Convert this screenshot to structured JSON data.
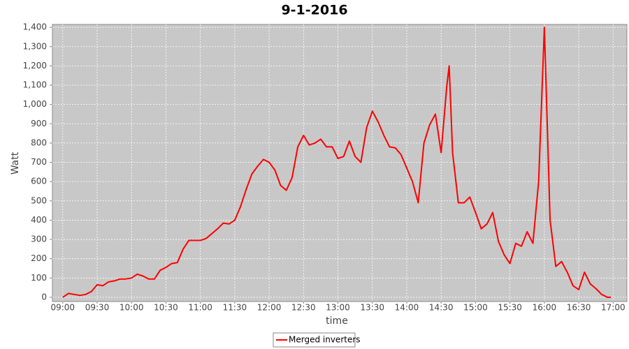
{
  "chart_data": {
    "type": "line",
    "title": "9-1-2016",
    "x_label": "time",
    "y_label": "Watt",
    "x": [
      "09:00",
      "09:05",
      "09:10",
      "09:15",
      "09:20",
      "09:25",
      "09:30",
      "09:35",
      "09:40",
      "09:45",
      "09:50",
      "09:55",
      "10:00",
      "10:05",
      "10:10",
      "10:15",
      "10:20",
      "10:25",
      "10:30",
      "10:35",
      "10:40",
      "10:45",
      "10:50",
      "10:55",
      "11:00",
      "11:05",
      "11:10",
      "11:15",
      "11:20",
      "11:25",
      "11:30",
      "11:35",
      "11:40",
      "11:45",
      "11:50",
      "11:55",
      "12:00",
      "12:05",
      "12:10",
      "12:15",
      "12:20",
      "12:25",
      "12:30",
      "12:35",
      "12:40",
      "12:45",
      "12:50",
      "12:55",
      "13:00",
      "13:05",
      "13:10",
      "13:15",
      "13:20",
      "13:25",
      "13:30",
      "13:35",
      "13:40",
      "13:45",
      "13:50",
      "13:55",
      "14:00",
      "14:05",
      "14:10",
      "14:15",
      "14:20",
      "14:25",
      "14:30",
      "14:35",
      "14:37",
      "14:40",
      "14:45",
      "14:50",
      "14:55",
      "15:00",
      "15:05",
      "15:10",
      "15:15",
      "15:20",
      "15:25",
      "15:30",
      "15:35",
      "15:40",
      "15:45",
      "15:50",
      "15:55",
      "16:00",
      "16:05",
      "16:10",
      "16:15",
      "16:20",
      "16:25",
      "16:30",
      "16:35",
      "16:40",
      "16:45",
      "16:50",
      "16:55",
      "16:58"
    ],
    "series": [
      {
        "name": "Merged inverters",
        "color": "#ff0000",
        "values": [
          0,
          20,
          15,
          10,
          15,
          30,
          65,
          60,
          80,
          85,
          95,
          95,
          100,
          120,
          110,
          95,
          95,
          140,
          155,
          175,
          180,
          250,
          295,
          295,
          295,
          305,
          330,
          355,
          385,
          380,
          400,
          470,
          560,
          640,
          680,
          715,
          700,
          660,
          580,
          555,
          620,
          780,
          840,
          790,
          800,
          820,
          780,
          780,
          720,
          730,
          810,
          730,
          700,
          880,
          965,
          910,
          840,
          780,
          775,
          740,
          670,
          600,
          490,
          800,
          895,
          950,
          750,
          1100,
          1200,
          750,
          490,
          490,
          520,
          440,
          355,
          380,
          440,
          290,
          220,
          175,
          280,
          265,
          340,
          280,
          600,
          1400,
          400,
          160,
          185,
          130,
          60,
          40,
          130,
          70,
          45,
          15,
          0,
          0
        ]
      }
    ],
    "xlim": [
      "08:51",
      "17:12"
    ],
    "xticks": [
      "09:00",
      "09:30",
      "10:00",
      "10:30",
      "11:00",
      "11:30",
      "12:00",
      "12:30",
      "13:00",
      "13:30",
      "14:00",
      "14:30",
      "15:00",
      "15:30",
      "16:00",
      "16:30",
      "17:00"
    ],
    "ylim": [
      -22,
      1415
    ],
    "yticks": [
      0,
      100,
      200,
      300,
      400,
      500,
      600,
      700,
      800,
      900,
      {
        "value": 1000,
        "label": "1,000"
      },
      {
        "value": 1100,
        "label": "1,100"
      },
      {
        "value": 1200,
        "label": "1,200"
      },
      {
        "value": 1300,
        "label": "1,300"
      },
      {
        "value": 1400,
        "label": "1,400"
      }
    ],
    "grid": true,
    "legend": "bottom"
  }
}
